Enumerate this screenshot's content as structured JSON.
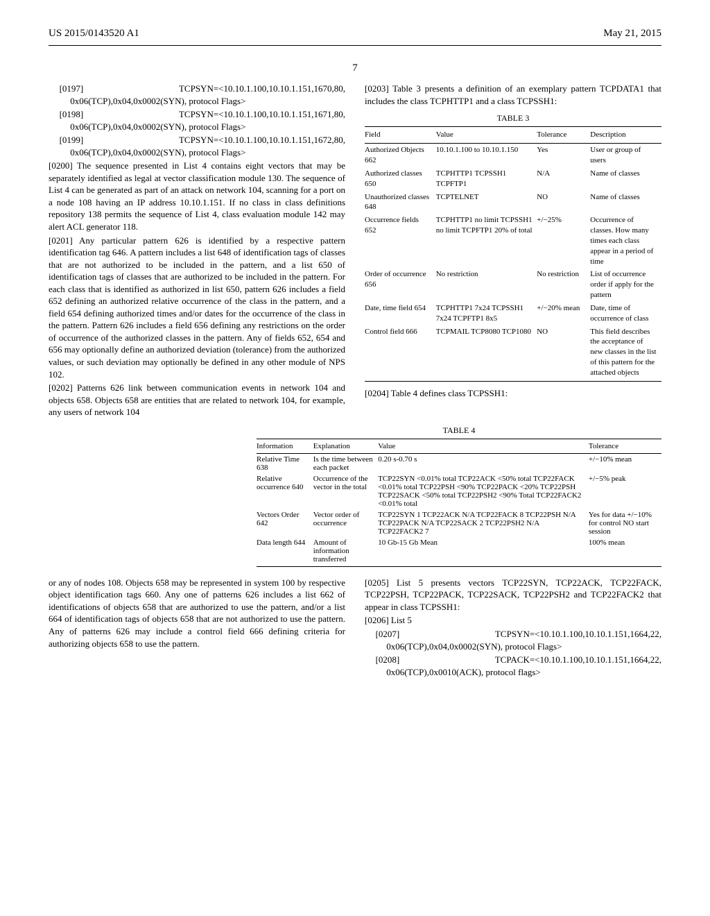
{
  "header": {
    "pubnum": "US 2015/0143520 A1",
    "date": "May 21, 2015",
    "page": "7"
  },
  "left": {
    "p0197": "[0197]    TCPSYN=<10.10.1.100,10.10.1.151,1670,80, 0x06(TCP),0x04,0x0002(SYN), protocol Flags>",
    "p0198": "[0198]    TCPSYN=<10.10.1.100,10.10.1.151,1671,80, 0x06(TCP),0x04,0x0002(SYN), protocol Flags>",
    "p0199": "[0199]    TCPSYN=<10.10.1.100,10.10.1.151,1672,80, 0x06(TCP),0x04,0x0002(SYN), protocol Flags>",
    "p0200": "[0200]    The sequence presented in List 4 contains eight vectors that may be separately identified as legal at vector classification module 130. The sequence of List 4 can be generated as part of an attack on network 104, scanning for a port on a node 108 having an IP address 10.10.1.151. If no class in class definitions repository 138 permits the sequence of List 4, class evaluation module 142 may alert ACL generator 118.",
    "p0201": "[0201]    Any particular pattern 626 is identified by a respective pattern identification tag 646. A pattern includes a list 648 of identification tags of classes that are not authorized to be included in the pattern, and a list 650 of identification tags of classes that are authorized to be included in the pattern. For each class that is identified as authorized in list 650, pattern 626 includes a field 652 defining an authorized relative occurrence of the class in the pattern, and a field 654 defining authorized times and/or dates for the occurrence of the class in the pattern. Pattern 626 includes a field 656 defining any restrictions on the order of occurrence of the authorized classes in the pattern. Any of fields 652, 654 and 656 may optionally define an authorized deviation (tolerance) from the authorized values, or such deviation may optionally be defined in any other module of NPS 102.",
    "p0202": "[0202]    Patterns 626 link between communication events in network 104 and objects 658. Objects 658 are entities that are related to network 104, for example, any users of network 104",
    "tail": "or any of nodes 108. Objects 658 may be represented in system 100 by respective object identification tags 660. Any one of patterns 626 includes a list 662 of identifications of objects 658 that are authorized to use the pattern, and/or a list 664 of identification tags of objects 658 that are not authorized to use the pattern. Any of patterns 626 may include a control field 666 defining criteria for authorizing objects 658 to use the pattern."
  },
  "right": {
    "p0203": "[0203]    Table 3 presents a definition of an exemplary pattern TCPDATA1 that includes the class TCPHTTP1 and a class TCPSSH1:",
    "t3title": "TABLE 3",
    "t3head": [
      "Field",
      "Value",
      "Tolerance",
      "Description"
    ],
    "t3rows": [
      [
        "Authorized Objects 662",
        "10.10.1.100 to 10.10.1.150",
        "Yes",
        "User or group of users"
      ],
      [
        "Authorized classes 650",
        "TCPHTTP1 TCPSSH1 TCPFTP1",
        "N/A",
        "Name of classes"
      ],
      [
        "Unauthorized classes 648",
        "TCPTELNET",
        "NO",
        "Name of classes"
      ],
      [
        "Occurrence fields 652",
        "TCPHTTP1 no limit TCPSSH1 no limit TCPFTP1 20% of total",
        "+/−25%",
        "Occurrence of classes. How many times each class appear in a period of time"
      ],
      [
        "Order of occurrence 656",
        "No restriction",
        "No restriction",
        "List of occurrence order if apply for the pattern"
      ],
      [
        "Date, time field 654",
        "TCPHTTP1 7x24 TCPSSH1 7x24 TCPFTP1 8x5",
        "+/−20% mean",
        "Date, time of occurrence of class"
      ],
      [
        "Control field 666",
        "TCPMAIL TCP8080 TCP1080",
        "NO",
        "This field describes the acceptance of new classes in the list of this pattern for the attached objects"
      ]
    ],
    "p0204": "[0204]    Table 4 defines class TCPSSH1:",
    "t4title": "TABLE 4",
    "t4head": [
      "Information",
      "Explanation",
      "Value",
      "Tolerance"
    ],
    "t4rows": [
      [
        "Relative Time 638",
        "Is the time between each packet",
        "0.20 s-0.70 s",
        "+/−10% mean"
      ],
      [
        "Relative occurrence 640",
        "Occurrence of the vector in the total",
        "TCP22SYN <0.01% total TCP22ACK <50% total TCP22FACK <0.01% total TCP22PSH <90% TCP22PACK <20% TCP22PSH TCP22SACK <50% total TCP22PSH2 <90% Total TCP22FACK2 <0.01% total",
        "+/−5% peak"
      ],
      [
        "Vectors Order 642",
        "Vector order of occurrence",
        "TCP22SYN 1 TCP22ACK N/A TCP22FACK 8 TCP22PSH N/A TCP22PACK N/A TCP22SACK 2 TCP22PSH2 N/A TCP22FACK2 7",
        "Yes for data +/−10% for control NO start session"
      ],
      [
        "Data length 644",
        "Amount of information transferred",
        "10 Gb-15 Gb Mean",
        "100% mean"
      ]
    ],
    "p0205": "[0205]    List 5 presents vectors TCP22SYN, TCP22ACK, TCP22FACK, TCP22PSH, TCP22PACK, TCP22SACK, TCP22PSH2 and TCP22FACK2 that appear in class TCPSSH1:",
    "p0206": "[0206]    List 5",
    "p0207": "[0207]    TCPSYN=<10.10.1.100,10.10.1.151,1664,22, 0x06(TCP),0x04,0x0002(SYN), protocol Flags>",
    "p0208": "[0208]    TCPACK=<10.10.1.100,10.10.1.151,1664,22, 0x06(TCP),0x0010(ACK), protocol flags>"
  },
  "t4widths": {
    "c1": "14%",
    "c2": "16%",
    "c3": "52%",
    "c4": "18%"
  },
  "t3widths": {
    "c1": "24%",
    "c2": "34%",
    "c3": "18%",
    "c4": "24%"
  }
}
